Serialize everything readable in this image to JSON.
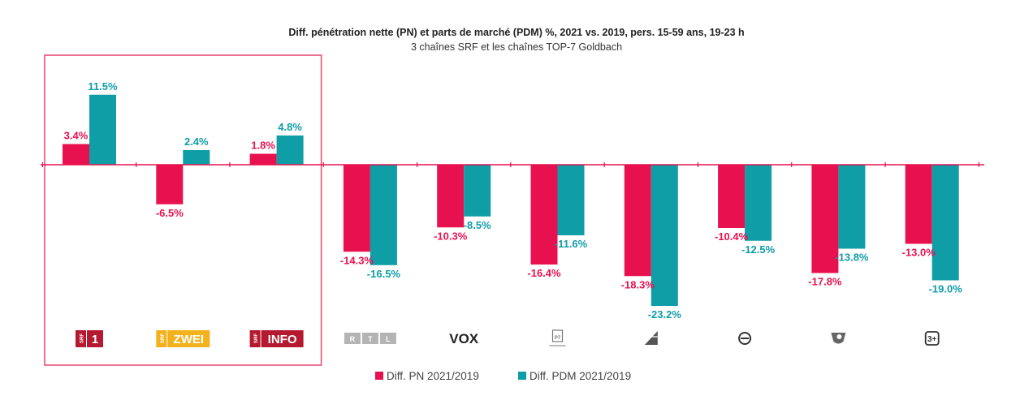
{
  "chart_data": {
    "type": "bar",
    "title": "Diff. pénétration nette (PN) et parts de marché (PDM) %, 2021 vs. 2019, pers. 15-59 ans, 19-23 h",
    "subtitle": "3 chaînes SRF et les chaînes TOP-7 Goldbach",
    "categories": [
      "SRF 1",
      "SRF zwei",
      "SRF info",
      "RTL",
      "VOX",
      "ProSieben",
      "Sat.1",
      "Kabel 1",
      "RTL II",
      "3+"
    ],
    "category_logos": [
      {
        "prefix": "SRF",
        "text": "1",
        "color": "#b5192f"
      },
      {
        "prefix": "SRF",
        "text": "ZWEI",
        "color": "#f2b21e"
      },
      {
        "prefix": "SRF",
        "text": "INFO",
        "color": "#b5192f"
      },
      {
        "prefix": "",
        "text": "R T L",
        "color": "#b4b4b4"
      },
      {
        "prefix": "",
        "text": "VOX",
        "color": "#222222"
      },
      {
        "prefix": "",
        "text": "P7",
        "color": "#777777"
      },
      {
        "prefix": "",
        "text": "",
        "color": "#555555"
      },
      {
        "prefix": "",
        "text": "e",
        "color": "#333333"
      },
      {
        "prefix": "",
        "text": "",
        "color": "#666666"
      },
      {
        "prefix": "",
        "text": "3+",
        "color": "#333333"
      }
    ],
    "series": [
      {
        "name": "Diff. PN 2021/2019",
        "color": "#e8114f",
        "values": [
          3.4,
          -6.5,
          1.8,
          -14.3,
          -10.3,
          -16.4,
          -18.3,
          -10.4,
          -17.8,
          -13.0
        ],
        "labels": [
          "3.4%",
          "-6.5%",
          "1.8%",
          "-14.3%",
          "-10.3%",
          "-16.4%",
          "-18.3%",
          "-10.4%",
          "-17.8%",
          "-13.0%"
        ]
      },
      {
        "name": "Diff. PDM 2021/2019",
        "color": "#0f9da6",
        "values": [
          11.5,
          2.4,
          4.8,
          -16.5,
          -8.5,
          -11.6,
          -23.2,
          -12.5,
          -13.8,
          -19.0
        ],
        "labels": [
          "11.5%",
          "2.4%",
          "4.8%",
          "-16.5%",
          "-8.5%",
          "-11.6%",
          "-23.2%",
          "-12.5%",
          "-13.8%",
          "-19.0%"
        ]
      }
    ],
    "ylim": [
      -25,
      15
    ],
    "highlight_group": [
      0,
      2
    ],
    "legend_position": "bottom-center",
    "axis_color": "#e8114f",
    "highlight_color": "#e8507a"
  }
}
